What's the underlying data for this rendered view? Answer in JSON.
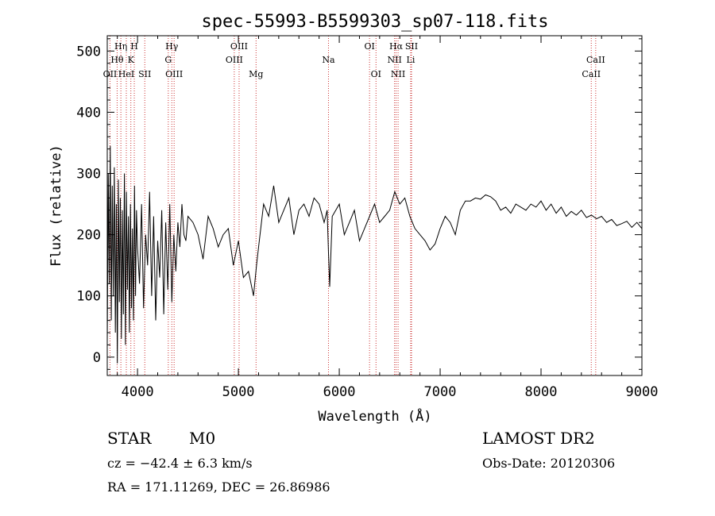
{
  "chart_data": {
    "type": "line",
    "title": "spec-55993-B5599303_sp07-118.fits",
    "xlabel": "Wavelength (Å)",
    "ylabel": "Flux (relative)",
    "xlim": [
      3700,
      9000
    ],
    "ylim": [
      -30,
      525
    ],
    "xticks": [
      4000,
      5000,
      6000,
      7000,
      8000,
      9000
    ],
    "yticks": [
      0,
      100,
      200,
      300,
      400,
      500
    ],
    "grid": false,
    "spectrum": {
      "x": [
        3700,
        3710,
        3720,
        3730,
        3740,
        3750,
        3760,
        3770,
        3780,
        3790,
        3800,
        3810,
        3820,
        3830,
        3840,
        3850,
        3860,
        3870,
        3880,
        3890,
        3900,
        3910,
        3920,
        3930,
        3940,
        3950,
        3960,
        3970,
        3980,
        3990,
        4000,
        4020,
        4040,
        4060,
        4080,
        4100,
        4120,
        4140,
        4160,
        4180,
        4200,
        4220,
        4240,
        4260,
        4280,
        4300,
        4320,
        4340,
        4360,
        4380,
        4400,
        4420,
        4440,
        4460,
        4480,
        4500,
        4550,
        4600,
        4650,
        4700,
        4750,
        4800,
        4850,
        4900,
        4950,
        5000,
        5050,
        5100,
        5150,
        5180,
        5200,
        5250,
        5300,
        5350,
        5400,
        5450,
        5500,
        5550,
        5600,
        5650,
        5700,
        5750,
        5800,
        5850,
        5880,
        5893,
        5905,
        5930,
        6000,
        6050,
        6100,
        6150,
        6200,
        6250,
        6300,
        6350,
        6400,
        6450,
        6500,
        6550,
        6563,
        6600,
        6650,
        6700,
        6750,
        6800,
        6850,
        6900,
        6950,
        7000,
        7050,
        7100,
        7150,
        7200,
        7250,
        7300,
        7350,
        7400,
        7450,
        7500,
        7550,
        7600,
        7650,
        7700,
        7750,
        7800,
        7850,
        7900,
        7950,
        8000,
        8050,
        8100,
        8150,
        8200,
        8250,
        8300,
        8350,
        8400,
        8450,
        8500,
        8550,
        8600,
        8650,
        8700,
        8750,
        8800,
        8850,
        8900,
        8950,
        9000
      ],
      "y": [
        20,
        300,
        120,
        345,
        60,
        280,
        100,
        310,
        40,
        250,
        -10,
        290,
        90,
        260,
        30,
        240,
        70,
        300,
        20,
        270,
        110,
        230,
        40,
        250,
        80,
        210,
        60,
        280,
        100,
        240,
        180,
        120,
        250,
        80,
        200,
        150,
        270,
        100,
        230,
        60,
        190,
        130,
        240,
        70,
        220,
        110,
        250,
        90,
        200,
        140,
        220,
        180,
        250,
        200,
        190,
        230,
        220,
        200,
        160,
        230,
        210,
        180,
        200,
        210,
        150,
        190,
        130,
        140,
        100,
        150,
        180,
        250,
        230,
        280,
        220,
        240,
        260,
        200,
        240,
        250,
        230,
        260,
        250,
        220,
        240,
        170,
        115,
        230,
        250,
        200,
        220,
        240,
        190,
        210,
        230,
        250,
        220,
        230,
        240,
        270,
        265,
        250,
        260,
        230,
        210,
        200,
        190,
        175,
        185,
        210,
        230,
        220,
        200,
        240,
        255,
        255,
        260,
        258,
        265,
        262,
        255,
        240,
        245,
        235,
        250,
        245,
        240,
        250,
        245,
        255,
        240,
        250,
        235,
        245,
        230,
        238,
        232,
        240,
        228,
        232,
        226,
        230,
        220,
        225,
        215,
        218,
        222,
        212,
        220,
        210
      ]
    },
    "lines": [
      {
        "label": "OII",
        "wavelength": 3727,
        "row": 3
      },
      {
        "label": "Hθ",
        "wavelength": 3798,
        "row": 2
      },
      {
        "label": "Hη",
        "wavelength": 3835,
        "row": 1
      },
      {
        "label": "HeI",
        "wavelength": 3889,
        "row": 3
      },
      {
        "label": "K",
        "wavelength": 3934,
        "row": 2
      },
      {
        "label": "H",
        "wavelength": 3968,
        "row": 1
      },
      {
        "label": "SII",
        "wavelength": 4072,
        "row": 3
      },
      {
        "label": "Hγ",
        "wavelength": 4340,
        "row": 1
      },
      {
        "label": "G",
        "wavelength": 4305,
        "row": 2
      },
      {
        "label": "OIII",
        "wavelength": 4363,
        "row": 3
      },
      {
        "label": "OIII",
        "wavelength": 5007,
        "row": 1
      },
      {
        "label": "OIII",
        "wavelength": 4959,
        "row": 2
      },
      {
        "label": "Mg",
        "wavelength": 5175,
        "row": 3
      },
      {
        "label": "Na",
        "wavelength": 5893,
        "row": 2
      },
      {
        "label": "OI",
        "wavelength": 6300,
        "row": 1
      },
      {
        "label": "OI",
        "wavelength": 6364,
        "row": 3
      },
      {
        "label": "Hα",
        "wavelength": 6563,
        "row": 1
      },
      {
        "label": "NII",
        "wavelength": 6548,
        "row": 2
      },
      {
        "label": "NII",
        "wavelength": 6583,
        "row": 3
      },
      {
        "label": "SII",
        "wavelength": 6716,
        "row": 1
      },
      {
        "label": "Li",
        "wavelength": 6708,
        "row": 2
      },
      {
        "label": "CaII",
        "wavelength": 8542,
        "row": 2
      },
      {
        "label": "CaII",
        "wavelength": 8498,
        "row": 3
      }
    ]
  },
  "info": {
    "object_class": "STAR",
    "subclass": "M0",
    "redshift": "cz = −42.4 ± 6.3 km/s",
    "coords": "RA = 171.11269, DEC =  26.86986",
    "survey": "LAMOST DR2",
    "obs_date": "Obs-Date: 20120306"
  },
  "colors": {
    "spectrum": "#000000",
    "line_marker": "#cc3333",
    "axes": "#000000"
  }
}
